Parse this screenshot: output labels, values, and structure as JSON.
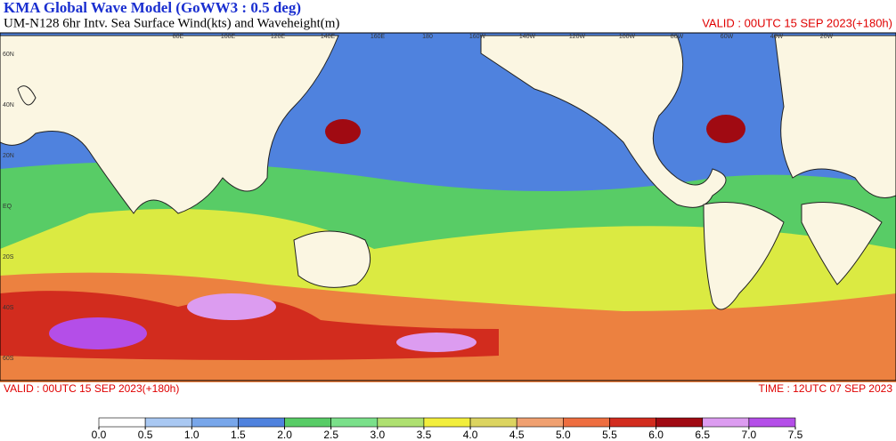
{
  "header": {
    "title": "KMA  Global Wave Model (GoWW3 : 0.5 deg)",
    "subtitle": "UM-N128  6hr Intv. Sea Surface Wind(kts) and Waveheight(m)",
    "valid": "VALID : 00UTC 15 SEP 2023(+180h)"
  },
  "map": {
    "lat_labels": [
      "60N",
      "40N",
      "20N",
      "EQ",
      "20S",
      "40S",
      "60S"
    ],
    "lon_labels": [
      "80E",
      "100E",
      "120E",
      "140E",
      "160E",
      "180",
      "160W",
      "140W",
      "120W",
      "100W",
      "80W",
      "60W",
      "40W",
      "20W"
    ]
  },
  "footer": {
    "valid": "VALID : 00UTC 15 SEP 2023(+180h)",
    "time": "TIME : 12UTC 07 SEP 2023"
  },
  "legend": {
    "ticks": [
      {
        "value": 0,
        "label": "0.0"
      },
      {
        "value": 0.5,
        "label": "0.5"
      },
      {
        "value": 1,
        "label": "1.0"
      },
      {
        "value": 1.5,
        "label": "1.5"
      },
      {
        "value": 2,
        "label": "2.0"
      },
      {
        "value": 2.5,
        "label": "2.5"
      },
      {
        "value": 3,
        "label": "3.0"
      },
      {
        "value": 3.5,
        "label": "3.5"
      },
      {
        "value": 4,
        "label": "4.0"
      },
      {
        "value": 4.5,
        "label": "4.5"
      },
      {
        "value": 5,
        "label": "5.0"
      },
      {
        "value": 5.5,
        "label": "5.5"
      },
      {
        "value": 6,
        "label": "6.0"
      },
      {
        "value": 6.5,
        "label": "6.5"
      },
      {
        "value": 7,
        "label": "7.0"
      },
      {
        "value": 7.5,
        "label": "7.5"
      }
    ],
    "colors": [
      "#ffffff",
      "#a9c8f2",
      "#78a6ea",
      "#4f82de",
      "#58cc66",
      "#7ae08a",
      "#aee070",
      "#f2ee3c",
      "#dcd460",
      "#f0a070",
      "#ee6e40",
      "#d22c1e",
      "#a00a12",
      "#dc9cf0",
      "#b44ee8"
    ]
  }
}
